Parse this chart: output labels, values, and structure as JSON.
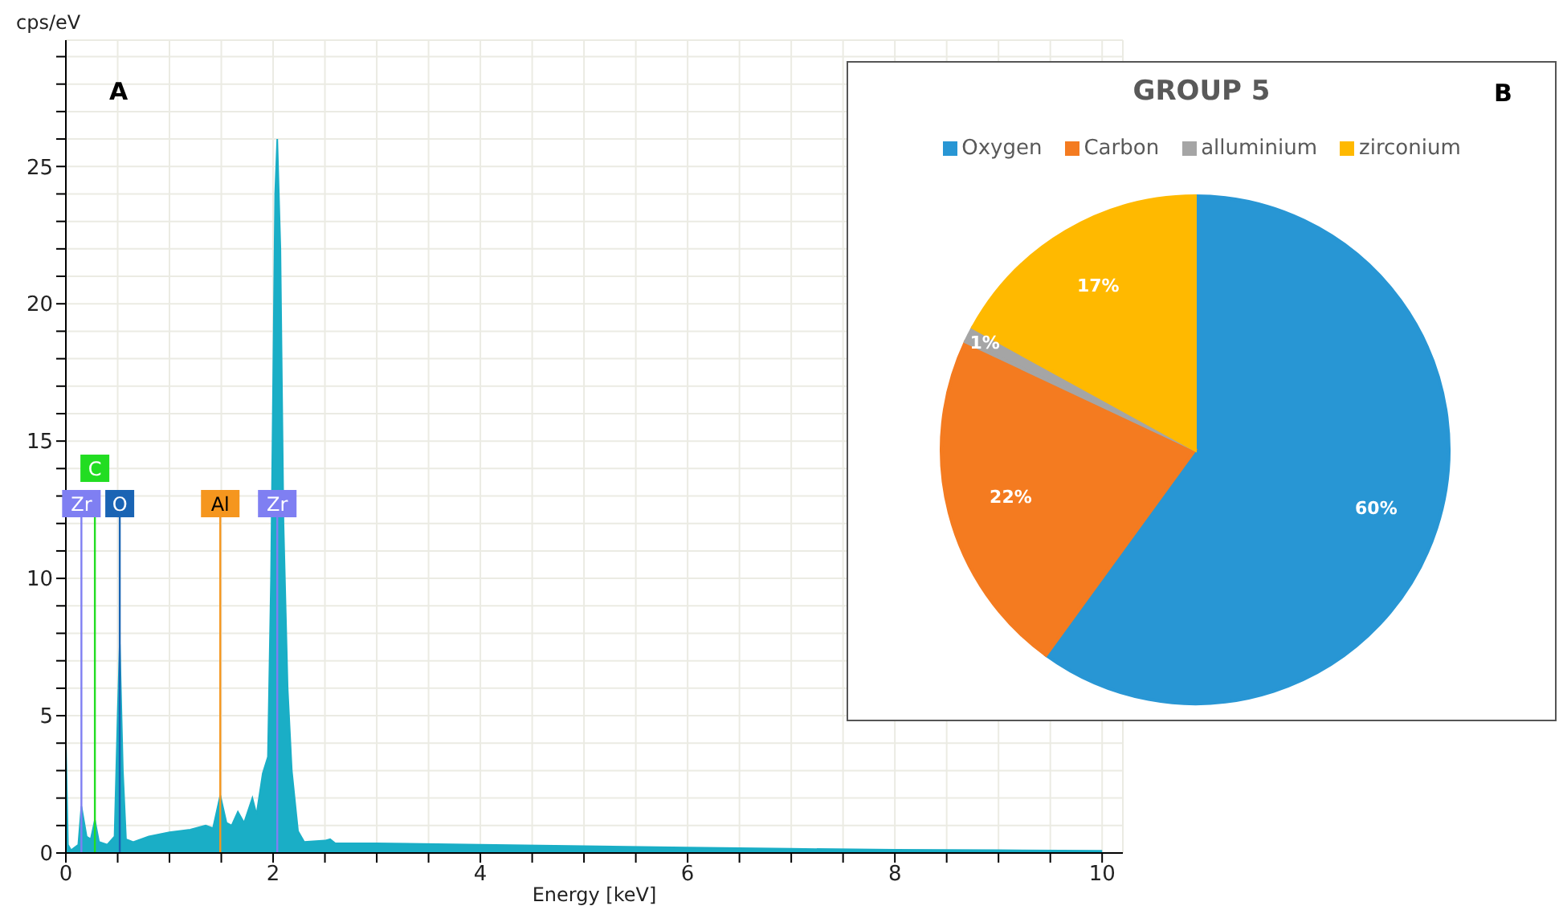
{
  "chart_data": [
    {
      "type": "area",
      "xlabel": "Energy [keV]",
      "ylabel": "cps/eV",
      "annotations": [
        "A"
      ],
      "xlim": [
        0,
        10.2
      ],
      "ylim": [
        0,
        29.6
      ],
      "xticks": [
        0,
        {
          "value": 0.5,
          "label": null
        },
        {
          "value": 1,
          "label": null
        },
        {
          "value": 1.5,
          "label": null
        },
        2,
        {
          "value": 2.5,
          "label": null
        },
        {
          "value": 3,
          "label": null
        },
        {
          "value": 3.5,
          "label": null
        },
        4,
        {
          "value": 4.5,
          "label": null
        },
        {
          "value": 5,
          "label": null
        },
        {
          "value": 5.5,
          "label": null
        },
        6,
        {
          "value": 6.5,
          "label": null
        },
        {
          "value": 7,
          "label": null
        },
        {
          "value": 7.5,
          "label": null
        },
        8,
        {
          "value": 8.5,
          "label": null
        },
        {
          "value": 9,
          "label": null
        },
        {
          "value": 9.5,
          "label": null
        },
        10
      ],
      "yticks": [
        0,
        {
          "value": 1,
          "label": null
        },
        {
          "value": 2,
          "label": null
        },
        {
          "value": 3,
          "label": null
        },
        {
          "value": 4,
          "label": null
        },
        5,
        {
          "value": 6,
          "label": null
        },
        {
          "value": 7,
          "label": null
        },
        {
          "value": 8,
          "label": null
        },
        {
          "value": 9,
          "label": null
        },
        10,
        {
          "value": 11,
          "label": null
        },
        {
          "value": 12,
          "label": null
        },
        {
          "value": 13,
          "label": null
        },
        {
          "value": 14,
          "label": null
        },
        15,
        {
          "value": 16,
          "label": null
        },
        {
          "value": 17,
          "label": null
        },
        {
          "value": 18,
          "label": null
        },
        {
          "value": 19,
          "label": null
        },
        20,
        {
          "value": 21,
          "label": null
        },
        {
          "value": 22,
          "label": null
        },
        {
          "value": 23,
          "label": null
        },
        {
          "value": 24,
          "label": null
        },
        25,
        {
          "value": 26,
          "label": null
        },
        {
          "value": 27,
          "label": null
        },
        {
          "value": 28,
          "label": null
        },
        {
          "value": 29,
          "label": null
        }
      ],
      "grid": true,
      "series": [
        {
          "color": "#1aaec6",
          "x": [
            0,
            0.02,
            0.05,
            0.12,
            0.15,
            0.2,
            0.24,
            0.28,
            0.32,
            0.4,
            0.47,
            0.5,
            0.52,
            0.55,
            0.58,
            0.65,
            0.8,
            1.0,
            1.2,
            1.35,
            1.42,
            1.49,
            1.55,
            1.6,
            1.66,
            1.72,
            1.8,
            1.84,
            1.9,
            1.95,
            1.98,
            2.02,
            2.04,
            2.07,
            2.1,
            2.14,
            2.18,
            2.24,
            2.3,
            2.5,
            2.55,
            2.6,
            3,
            4,
            5,
            6,
            7,
            8,
            9,
            10
          ],
          "values": [
            4,
            0.3,
            0.1,
            0.3,
            1.7,
            0.6,
            0.5,
            1.2,
            0.4,
            0.3,
            0.6,
            5,
            7.6,
            3,
            0.5,
            0.4,
            0.6,
            0.75,
            0.85,
            1.0,
            0.9,
            2.1,
            1.1,
            1.0,
            1.5,
            1.1,
            2.0,
            1.4,
            2.9,
            3.5,
            10,
            24,
            26,
            22,
            12,
            6,
            3,
            0.8,
            0.4,
            0.45,
            0.5,
            0.35,
            0.35,
            0.3,
            0.25,
            0.2,
            0.15,
            0.12,
            0.1,
            0.08
          ]
        }
      ],
      "ref_lines": [
        {
          "axis": "x",
          "value": 0.15,
          "label": "Zr",
          "color": "#7f7ff2"
        },
        {
          "axis": "x",
          "value": 0.28,
          "label": "C",
          "color": "#22dd22"
        },
        {
          "axis": "x",
          "value": 0.52,
          "label": "O",
          "color": "#1a64b4"
        },
        {
          "axis": "x",
          "value": 1.49,
          "label": "Al",
          "color": "#f5961e"
        },
        {
          "axis": "x",
          "value": 2.04,
          "label": "Zr",
          "color": "#7f7ff2"
        }
      ]
    },
    {
      "type": "pie",
      "title": "GROUP 5",
      "annotations": [
        "B"
      ],
      "legend": "top",
      "categories": [
        "Oxygen",
        "Carbon",
        "alluminium",
        "zirconium"
      ],
      "values": [
        60,
        22,
        1,
        17
      ],
      "colors": [
        "#2896d4",
        "#f47b20",
        "#a5a5a5",
        "#ffb900"
      ],
      "value_labels": [
        "60%",
        "22%",
        "1%",
        "17%"
      ]
    }
  ]
}
